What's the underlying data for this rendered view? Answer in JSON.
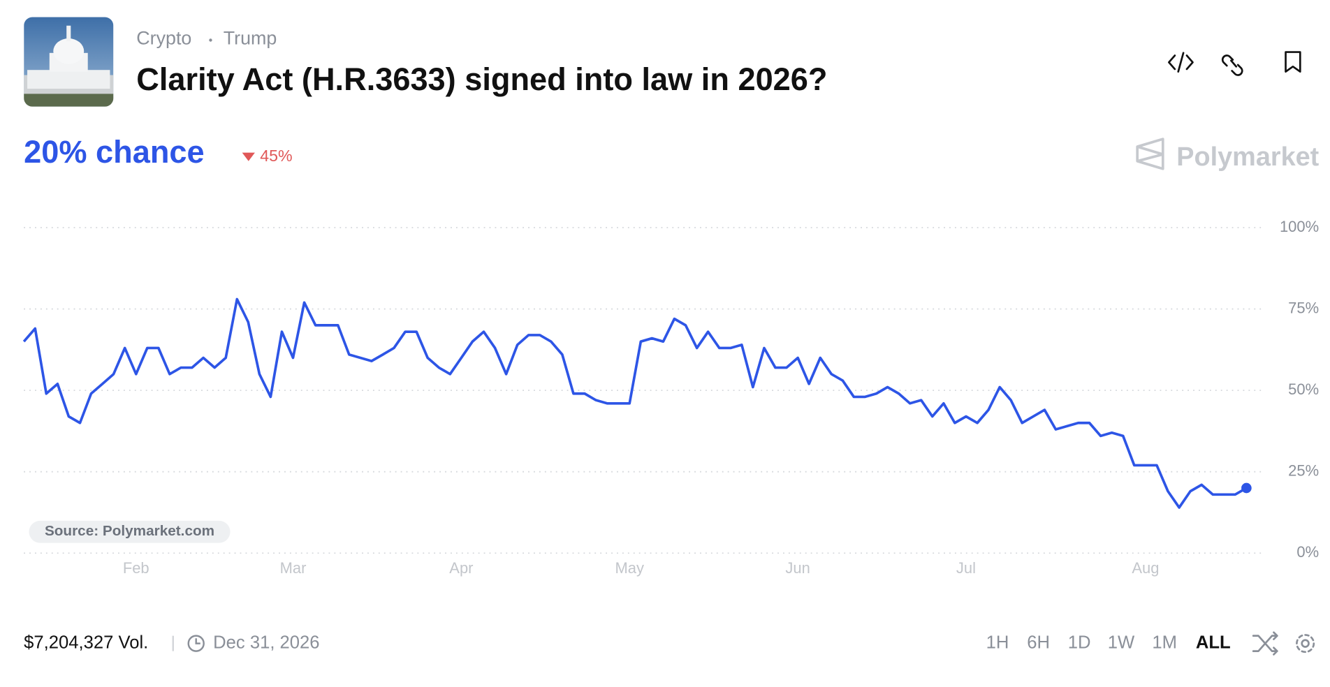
{
  "header": {
    "category": "Crypto",
    "tag": "Trump",
    "title": "Clarity Act (H.R.3633) signed into law in 2026?",
    "chance": "20% chance",
    "change": "45%",
    "brand": "Polymarket"
  },
  "chart_data": {
    "type": "line",
    "color": "#2d55e6",
    "grid": true,
    "categories": [
      null,
      null,
      null,
      null,
      null,
      null,
      null,
      null,
      null,
      null,
      "Feb",
      null,
      null,
      null,
      null,
      null,
      null,
      null,
      null,
      null,
      null,
      null,
      null,
      null,
      "Mar",
      null,
      null,
      null,
      null,
      null,
      null,
      null,
      null,
      null,
      null,
      null,
      null,
      null,
      null,
      "Apr",
      null,
      null,
      null,
      null,
      null,
      null,
      null,
      null,
      null,
      null,
      null,
      null,
      null,
      null,
      "May",
      null,
      null,
      null,
      null,
      null,
      null,
      null,
      null,
      null,
      null,
      null,
      null,
      null,
      null,
      "Jun",
      null,
      null,
      null,
      null,
      null,
      null,
      null,
      null,
      null,
      null,
      null,
      null,
      null,
      null,
      "Jul",
      null,
      null,
      null,
      null,
      null,
      null,
      null,
      null,
      null,
      null,
      null,
      null,
      null,
      null,
      null,
      "Aug",
      null,
      null,
      null,
      null,
      null,
      null,
      null,
      null,
      null
    ],
    "values": [
      65,
      69,
      49,
      52,
      42,
      40,
      49,
      52,
      55,
      63,
      55,
      63,
      63,
      55,
      57,
      57,
      60,
      57,
      60,
      78,
      71,
      55,
      48,
      68,
      60,
      77,
      70,
      70,
      70,
      61,
      60,
      59,
      61,
      63,
      68,
      68,
      60,
      57,
      55,
      60,
      65,
      68,
      63,
      55,
      64,
      67,
      67,
      65,
      61,
      49,
      49,
      47,
      46,
      46,
      46,
      65,
      66,
      65,
      72,
      70,
      63,
      68,
      63,
      63,
      64,
      51,
      63,
      57,
      57,
      60,
      52,
      60,
      55,
      53,
      48,
      48,
      49,
      51,
      49,
      46,
      47,
      42,
      46,
      40,
      42,
      40,
      44,
      51,
      47,
      40,
      42,
      44,
      38,
      39,
      40,
      40,
      36,
      37,
      36,
      27,
      27,
      27,
      19,
      14,
      19,
      21,
      18,
      18,
      18,
      20
    ],
    "ylim": [
      0,
      100
    ],
    "yticks": [
      {
        "value": 0,
        "label": "0%"
      },
      {
        "value": 25,
        "label": "25%"
      },
      {
        "value": 50,
        "label": "50%"
      },
      {
        "value": 75,
        "label": "75%"
      },
      {
        "value": 100,
        "label": "100%"
      }
    ],
    "source": "Source: Polymarket.com"
  },
  "footer": {
    "volume": "$7,204,327 Vol.",
    "end_date": "Dec 31, 2026",
    "ranges": [
      "1H",
      "6H",
      "1D",
      "1W",
      "1M",
      "ALL"
    ]
  }
}
